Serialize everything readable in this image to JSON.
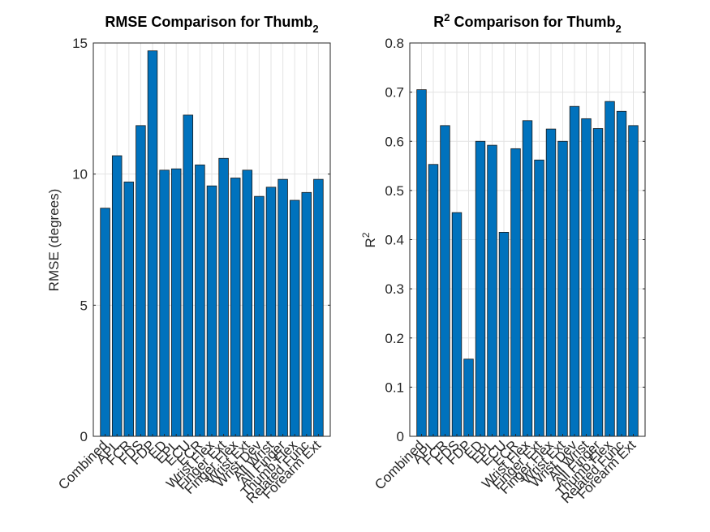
{
  "chart_data": [
    {
      "type": "bar",
      "title": "RMSE Comparison for Thumb",
      "title_subscript": "2",
      "ylabel": "RMSE (degrees)",
      "categories": [
        "Combined",
        "APL",
        "FCR",
        "FDS",
        "FDP",
        "ED",
        "EPL",
        "ECU",
        "ECR",
        "Wrist Flex",
        "Finger Ext",
        "Finger Flex",
        "Wrist Ext",
        "Wrist Dev",
        "All Wrist",
        "All Finger",
        "Thumb Flex",
        "Related Func",
        "Forearm Ext"
      ],
      "values": [
        8.7,
        10.7,
        9.7,
        11.85,
        14.7,
        10.15,
        10.2,
        12.25,
        10.35,
        9.55,
        10.6,
        9.85,
        10.15,
        9.15,
        9.5,
        9.8,
        9.0,
        9.3,
        9.8
      ],
      "color": "#0072bd",
      "ylim": [
        0,
        15
      ],
      "yticks": [
        0,
        5,
        10,
        15
      ],
      "grid": true
    },
    {
      "type": "bar",
      "title_prefix": "R",
      "title_superscript": "2",
      "title": " Comparison for Thumb",
      "title_subscript": "2",
      "ylabel": "R",
      "ylabel_superscript": "2",
      "categories": [
        "Combined",
        "APL",
        "FCR",
        "FDS",
        "FDP",
        "ED",
        "EPL",
        "ECU",
        "ECR",
        "Wrist Flex",
        "Finger Ext",
        "Finger Flex",
        "Wrist Ext",
        "Wrist Dev",
        "All Wrist",
        "All Finger",
        "Thumb Flex",
        "Related Func",
        "Forearm Ext"
      ],
      "values": [
        0.705,
        0.553,
        0.632,
        0.455,
        0.157,
        0.6,
        0.592,
        0.415,
        0.585,
        0.642,
        0.562,
        0.625,
        0.6,
        0.671,
        0.646,
        0.626,
        0.681,
        0.661,
        0.632
      ],
      "color": "#0072bd",
      "ylim": [
        0,
        0.8
      ],
      "yticks": [
        0,
        0.1,
        0.2,
        0.3,
        0.4,
        0.5,
        0.6,
        0.7,
        0.8
      ],
      "grid": true
    }
  ]
}
